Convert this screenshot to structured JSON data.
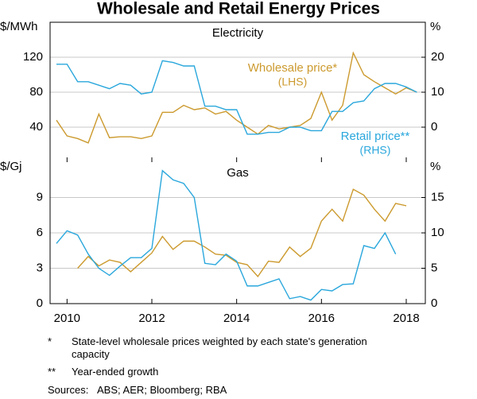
{
  "title": "Wholesale and Retail Energy Prices",
  "chart_data": [
    {
      "type": "line",
      "title": "Electricity",
      "y_label": "$/MWh",
      "y2_label": "%",
      "xlim": [
        2009.6,
        2018.45
      ],
      "ylim": [
        0,
        160
      ],
      "yticks": [
        40,
        80,
        120
      ],
      "y2lim": [
        -10,
        30
      ],
      "y2ticks": [
        0,
        10,
        20
      ],
      "grid": true,
      "x": [
        2009.75,
        2010,
        2010.25,
        2010.5,
        2010.75,
        2011,
        2011.25,
        2011.5,
        2011.75,
        2012,
        2012.25,
        2012.5,
        2012.75,
        2013,
        2013.25,
        2013.5,
        2013.75,
        2014,
        2014.25,
        2014.5,
        2014.75,
        2015,
        2015.25,
        2015.5,
        2015.75,
        2016,
        2016.25,
        2016.5,
        2016.75,
        2017,
        2017.25,
        2017.5,
        2017.75,
        2018,
        2018.25
      ],
      "series": [
        {
          "name": "Wholesale price*",
          "side_label": "(LHS)",
          "color": "#cc9a2e",
          "values": [
            48,
            30,
            27,
            22,
            55,
            28,
            29,
            29,
            27,
            30,
            57,
            57,
            65,
            60,
            62,
            55,
            58,
            48,
            40,
            32,
            42,
            38,
            40,
            42,
            50,
            80,
            48,
            65,
            125,
            100,
            92,
            85,
            78,
            85,
            80
          ]
        },
        {
          "name": "Retail price**",
          "side_label": "(RHS)",
          "color": "#2aa7dc",
          "axis": "y2",
          "values": [
            18,
            18,
            13,
            13,
            12,
            11,
            12.5,
            12,
            9.5,
            10,
            19,
            18.5,
            17.5,
            17.5,
            6,
            6,
            5,
            5,
            -2,
            -2,
            -1.5,
            -1.5,
            0,
            0,
            -1,
            -1,
            4.5,
            4.5,
            7,
            7.5,
            11,
            12.5,
            12.5,
            11.5,
            10
          ]
        }
      ]
    },
    {
      "type": "line",
      "title": "Gas",
      "y_label": "$/Gj",
      "y2_label": "%",
      "xlim": [
        2009.6,
        2018.45
      ],
      "xticks": [
        2010,
        2012,
        2014,
        2016,
        2018
      ],
      "ylim": [
        0,
        12
      ],
      "yticks": [
        0,
        3,
        6,
        9
      ],
      "y2lim": [
        0,
        20
      ],
      "y2ticks": [
        0,
        5,
        10,
        15
      ],
      "grid": true,
      "x": [
        2009.75,
        2010,
        2010.25,
        2010.5,
        2010.75,
        2011,
        2011.25,
        2011.5,
        2011.75,
        2012,
        2012.25,
        2012.5,
        2012.75,
        2013,
        2013.25,
        2013.5,
        2013.75,
        2014,
        2014.25,
        2014.5,
        2014.75,
        2015,
        2015.25,
        2015.5,
        2015.75,
        2016,
        2016.25,
        2016.5,
        2016.75,
        2017,
        2017.25,
        2017.5,
        2017.75,
        2018,
        2018.25
      ],
      "series": [
        {
          "color": "#cc9a2e",
          "values": [
            null,
            null,
            3.0,
            4.0,
            3.2,
            3.7,
            3.5,
            2.7,
            3.5,
            4.3,
            5.7,
            4.6,
            5.3,
            5.3,
            4.8,
            4.2,
            4.1,
            3.5,
            3.3,
            2.3,
            3.6,
            3.5,
            4.8,
            4.0,
            4.7,
            7.0,
            8.0,
            7.0,
            9.7,
            9.2,
            8.0,
            7.0,
            8.5,
            8.3,
            null
          ]
        },
        {
          "color": "#2aa7dc",
          "axis": "y2",
          "values": [
            8.5,
            10.3,
            9.7,
            7,
            5,
            4,
            5.3,
            6.5,
            6.5,
            7.8,
            18.8,
            17.5,
            17,
            15,
            5.7,
            5.5,
            7,
            6,
            2.5,
            2.5,
            3,
            3.5,
            0.7,
            1,
            0.5,
            2,
            1.8,
            2.7,
            2.8,
            8.2,
            7.8,
            10,
            7,
            null,
            null
          ]
        }
      ]
    }
  ],
  "notes": [
    {
      "marker": "*",
      "text": "State-level wholesale prices weighted by each state's generation capacity"
    },
    {
      "marker": "**",
      "text": "Year-ended growth"
    },
    {
      "marker": "Sources:",
      "text": "ABS; AER; Bloomberg; RBA"
    }
  ]
}
